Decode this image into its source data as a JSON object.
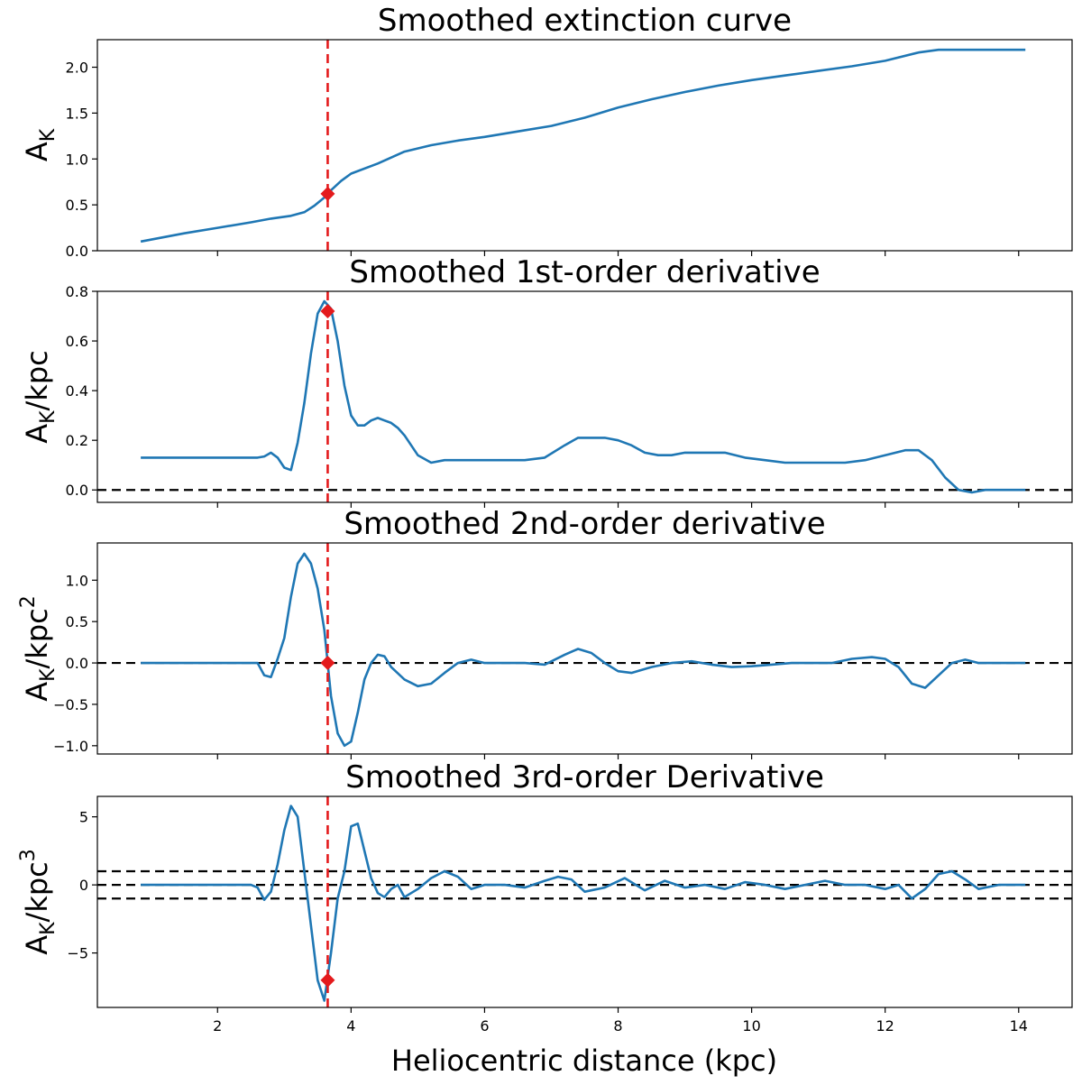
{
  "chart_data": [
    {
      "type": "line",
      "title": "Smoothed extinction curve",
      "ylabel_main": "A",
      "ylabel_sub": "K",
      "ylabel_suffix": "",
      "ylabel_sup": "",
      "xlim": [
        0.2,
        14.8
      ],
      "ylim": [
        0.0,
        2.3
      ],
      "yticks": [
        0.0,
        0.5,
        1.0,
        1.5,
        2.0
      ],
      "ytick_labels": [
        "0.0",
        "0.5",
        "1.0",
        "1.5",
        "2.0"
      ],
      "hlines": [],
      "marker": {
        "x": 3.65,
        "y": 0.62
      },
      "x": [
        0.85,
        1.5,
        2.0,
        2.5,
        2.8,
        3.1,
        3.3,
        3.45,
        3.6,
        3.7,
        3.85,
        4.0,
        4.4,
        4.8,
        5.2,
        5.6,
        6.0,
        6.5,
        7.0,
        7.5,
        8.0,
        8.5,
        9.0,
        9.5,
        10.0,
        10.5,
        11.0,
        11.5,
        12.0,
        12.5,
        12.8,
        13.0,
        13.5,
        14.1
      ],
      "values": [
        0.1,
        0.19,
        0.25,
        0.31,
        0.35,
        0.38,
        0.42,
        0.49,
        0.58,
        0.66,
        0.76,
        0.84,
        0.95,
        1.08,
        1.15,
        1.2,
        1.24,
        1.3,
        1.36,
        1.45,
        1.56,
        1.65,
        1.73,
        1.8,
        1.86,
        1.91,
        1.96,
        2.01,
        2.07,
        2.16,
        2.19,
        2.19,
        2.19,
        2.19
      ]
    },
    {
      "type": "line",
      "title": "Smoothed 1st-order derivative",
      "ylabel_main": "A",
      "ylabel_sub": "K",
      "ylabel_suffix": "/kpc",
      "ylabel_sup": "",
      "xlim": [
        0.2,
        14.8
      ],
      "ylim": [
        -0.05,
        0.8
      ],
      "yticks": [
        0.0,
        0.2,
        0.4,
        0.6,
        0.8
      ],
      "ytick_labels": [
        "0.0",
        "0.2",
        "0.4",
        "0.6",
        "0.8"
      ],
      "hlines": [
        0.0
      ],
      "marker": {
        "x": 3.65,
        "y": 0.72
      },
      "x": [
        0.85,
        1.5,
        2.0,
        2.5,
        2.6,
        2.7,
        2.8,
        2.9,
        3.0,
        3.1,
        3.2,
        3.3,
        3.4,
        3.5,
        3.6,
        3.7,
        3.8,
        3.9,
        4.0,
        4.1,
        4.2,
        4.3,
        4.4,
        4.5,
        4.6,
        4.7,
        4.8,
        4.9,
        5.0,
        5.2,
        5.4,
        5.6,
        5.8,
        6.0,
        6.3,
        6.6,
        6.9,
        7.2,
        7.4,
        7.6,
        7.8,
        8.0,
        8.2,
        8.4,
        8.6,
        8.8,
        9.0,
        9.3,
        9.6,
        9.9,
        10.2,
        10.5,
        10.8,
        11.1,
        11.4,
        11.7,
        12.0,
        12.3,
        12.5,
        12.7,
        12.9,
        13.1,
        13.3,
        13.5,
        13.8,
        14.1
      ],
      "values": [
        0.13,
        0.13,
        0.13,
        0.13,
        0.13,
        0.135,
        0.15,
        0.13,
        0.09,
        0.08,
        0.19,
        0.35,
        0.55,
        0.71,
        0.76,
        0.73,
        0.6,
        0.42,
        0.3,
        0.26,
        0.26,
        0.28,
        0.29,
        0.28,
        0.27,
        0.25,
        0.22,
        0.18,
        0.14,
        0.11,
        0.12,
        0.12,
        0.12,
        0.12,
        0.12,
        0.12,
        0.13,
        0.18,
        0.21,
        0.21,
        0.21,
        0.2,
        0.18,
        0.15,
        0.14,
        0.14,
        0.15,
        0.15,
        0.15,
        0.13,
        0.12,
        0.11,
        0.11,
        0.11,
        0.11,
        0.12,
        0.14,
        0.16,
        0.16,
        0.12,
        0.05,
        0.0,
        -0.01,
        0.0,
        0.0,
        0.0
      ]
    },
    {
      "type": "line",
      "title": "Smoothed 2nd-order derivative",
      "ylabel_main": "A",
      "ylabel_sub": "K",
      "ylabel_suffix": "/kpc",
      "ylabel_sup": "2",
      "xlim": [
        0.2,
        14.8
      ],
      "ylim": [
        -1.1,
        1.45
      ],
      "yticks": [
        -1.0,
        -0.5,
        0.0,
        0.5,
        1.0
      ],
      "ytick_labels": [
        "−1.0",
        "−0.5",
        "0.0",
        "0.5",
        "1.0"
      ],
      "hlines": [
        0.0
      ],
      "marker": {
        "x": 3.65,
        "y": 0.0
      },
      "x": [
        0.85,
        1.5,
        2.0,
        2.5,
        2.6,
        2.7,
        2.8,
        2.9,
        3.0,
        3.1,
        3.2,
        3.3,
        3.4,
        3.5,
        3.6,
        3.7,
        3.8,
        3.9,
        4.0,
        4.1,
        4.2,
        4.3,
        4.4,
        4.5,
        4.6,
        4.8,
        5.0,
        5.2,
        5.4,
        5.6,
        5.8,
        6.0,
        6.3,
        6.6,
        6.9,
        7.2,
        7.4,
        7.6,
        7.8,
        8.0,
        8.2,
        8.5,
        8.8,
        9.1,
        9.4,
        9.7,
        10.0,
        10.3,
        10.6,
        10.9,
        11.2,
        11.5,
        11.8,
        12.0,
        12.2,
        12.4,
        12.6,
        12.8,
        13.0,
        13.2,
        13.4,
        13.7,
        14.1
      ],
      "values": [
        0.0,
        0.0,
        0.0,
        0.0,
        0.0,
        -0.15,
        -0.17,
        0.05,
        0.3,
        0.8,
        1.2,
        1.32,
        1.2,
        0.9,
        0.4,
        -0.4,
        -0.85,
        -1.0,
        -0.95,
        -0.6,
        -0.2,
        0.0,
        0.1,
        0.08,
        -0.05,
        -0.2,
        -0.28,
        -0.25,
        -0.12,
        0.0,
        0.04,
        0.0,
        0.0,
        0.0,
        -0.02,
        0.1,
        0.17,
        0.12,
        0.0,
        -0.1,
        -0.12,
        -0.05,
        0.0,
        0.02,
        -0.02,
        -0.05,
        -0.04,
        -0.02,
        0.0,
        0.0,
        0.0,
        0.05,
        0.07,
        0.05,
        -0.05,
        -0.25,
        -0.3,
        -0.15,
        0.0,
        0.04,
        0.0,
        0.0,
        0.0
      ]
    },
    {
      "type": "line",
      "title": "Smoothed 3rd-order Derivative",
      "ylabel_main": "A",
      "ylabel_sub": "K",
      "ylabel_suffix": "/kpc",
      "ylabel_sup": "3",
      "xlim": [
        0.2,
        14.8
      ],
      "ylim": [
        -9.0,
        6.5
      ],
      "yticks": [
        -5,
        0,
        5
      ],
      "ytick_labels": [
        "−5",
        "0",
        "5"
      ],
      "hlines": [
        1.0,
        0.0,
        -1.0
      ],
      "marker": {
        "x": 3.65,
        "y": -7.0
      },
      "x": [
        0.85,
        1.5,
        2.0,
        2.5,
        2.6,
        2.7,
        2.8,
        2.9,
        3.0,
        3.1,
        3.2,
        3.3,
        3.4,
        3.5,
        3.6,
        3.7,
        3.8,
        3.9,
        4.0,
        4.1,
        4.2,
        4.3,
        4.4,
        4.5,
        4.6,
        4.7,
        4.8,
        5.0,
        5.2,
        5.4,
        5.6,
        5.8,
        6.0,
        6.3,
        6.6,
        6.9,
        7.1,
        7.3,
        7.5,
        7.8,
        8.1,
        8.4,
        8.7,
        9.0,
        9.3,
        9.6,
        9.9,
        10.2,
        10.5,
        10.8,
        11.1,
        11.4,
        11.7,
        12.0,
        12.2,
        12.4,
        12.6,
        12.8,
        13.0,
        13.2,
        13.4,
        13.7,
        14.1
      ],
      "values": [
        0.0,
        0.0,
        0.0,
        0.0,
        -0.2,
        -1.1,
        -0.5,
        1.5,
        4.0,
        5.8,
        5.0,
        1.0,
        -3.0,
        -7.0,
        -8.5,
        -5.0,
        -1.0,
        1.0,
        4.3,
        4.5,
        2.5,
        0.5,
        -0.6,
        -0.9,
        -0.3,
        0.0,
        -0.9,
        -0.3,
        0.5,
        1.0,
        0.6,
        -0.3,
        0.0,
        0.0,
        -0.2,
        0.3,
        0.6,
        0.4,
        -0.5,
        -0.2,
        0.5,
        -0.4,
        0.3,
        -0.2,
        0.0,
        -0.3,
        0.2,
        0.0,
        -0.3,
        0.0,
        0.3,
        0.0,
        0.0,
        -0.3,
        0.0,
        -1.0,
        -0.3,
        0.8,
        1.0,
        0.4,
        -0.3,
        0.0,
        0.0
      ]
    }
  ],
  "xaxis": {
    "label": "Heliocentric distance (kpc)",
    "ticks": [
      2,
      4,
      6,
      8,
      10,
      12,
      14
    ],
    "tick_labels": [
      "2",
      "4",
      "6",
      "8",
      "10",
      "12",
      "14"
    ]
  },
  "vline_x": 3.65,
  "colors": {
    "curve": "#1f77b4",
    "vline": "#e41a1c",
    "marker": "#e41a1c",
    "hline": "#000000"
  }
}
